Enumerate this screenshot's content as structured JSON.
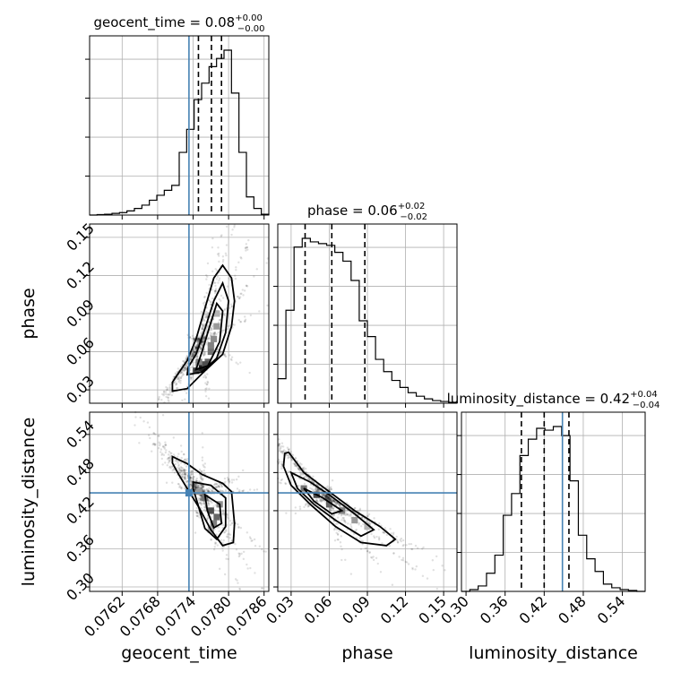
{
  "chart_data": {
    "type": "corner",
    "truth_color": "#4682b4",
    "grid": true,
    "parameters": [
      {
        "name": "geocent_time",
        "axis_label": "geocent_time",
        "range": [
          0.07565,
          0.07868
        ],
        "ticks": [
          0.0762,
          0.0768,
          0.0774,
          0.078,
          0.0786
        ],
        "tick_labels": [
          "0.0762",
          "0.0768",
          "0.0774",
          "0.0780",
          "0.0786"
        ],
        "truth": 0.07733,
        "quantiles": [
          0.07749,
          0.07771,
          0.07788
        ],
        "median": 0.07771,
        "title": {
          "main": "geocent_time = 0.08",
          "sup": "+0.00",
          "sub": "−0.00"
        },
        "histogram": [
          0,
          0.003,
          0.005,
          0.01,
          0.015,
          0.025,
          0.04,
          0.06,
          0.09,
          0.12,
          0.15,
          0.18,
          0.38,
          0.52,
          0.7,
          0.8,
          0.9,
          0.95,
          1.0,
          0.74,
          0.38,
          0.11,
          0.04,
          0.005
        ]
      },
      {
        "name": "phase",
        "axis_label": "phase",
        "range": [
          0.0195,
          0.1605
        ],
        "ticks": [
          0.03,
          0.06,
          0.09,
          0.12,
          0.15
        ],
        "tick_labels": [
          "0.03",
          "0.06",
          "0.09",
          "0.12",
          "0.15"
        ],
        "truth": null,
        "quantiles": [
          0.041,
          0.062,
          0.088
        ],
        "median": 0.062,
        "title": {
          "main": "phase = 0.06",
          "sup": "+0.02",
          "sub": "−0.02"
        },
        "histogram": [
          0.14,
          0.53,
          0.89,
          0.94,
          0.92,
          0.91,
          0.9,
          0.86,
          0.81,
          0.7,
          0.47,
          0.38,
          0.25,
          0.18,
          0.13,
          0.09,
          0.06,
          0.04,
          0.025,
          0.015,
          0.01,
          0.005
        ]
      },
      {
        "name": "luminosity_distance",
        "axis_label": "luminosity_distance",
        "range": [
          0.293,
          0.575
        ],
        "ticks": [
          0.3,
          0.36,
          0.42,
          0.48,
          0.54
        ],
        "tick_labels": [
          "0.30",
          "0.36",
          "0.42",
          "0.48",
          "0.54"
        ],
        "truth": 0.448,
        "quantiles": [
          0.385,
          0.42,
          0.458
        ],
        "median": 0.42,
        "title": {
          "main": "luminosity_distance = 0.42",
          "sup": "+0.04",
          "sub": "−0.04"
        },
        "histogram": [
          0,
          0.01,
          0.03,
          0.1,
          0.2,
          0.42,
          0.54,
          0.75,
          0.84,
          0.9,
          0.89,
          0.91,
          0.86,
          0.61,
          0.31,
          0.18,
          0.11,
          0.04,
          0.02,
          0.01,
          0.005,
          0
        ]
      }
    ],
    "pairs": [
      {
        "x": "geocent_time",
        "y": "phase",
        "contours": [
          [
            [
              0.07705,
              0.029
            ],
            [
              0.0773,
              0.031
            ],
            [
              0.0776,
              0.045
            ],
            [
              0.0779,
              0.058
            ],
            [
              0.07805,
              0.08
            ],
            [
              0.0781,
              0.1
            ],
            [
              0.07805,
              0.118
            ],
            [
              0.0779,
              0.128
            ],
            [
              0.07775,
              0.118
            ],
            [
              0.0776,
              0.094
            ],
            [
              0.07745,
              0.07
            ],
            [
              0.0773,
              0.053
            ],
            [
              0.07715,
              0.043
            ],
            [
              0.07705,
              0.036
            ],
            [
              0.07705,
              0.029
            ]
          ],
          [
            [
              0.0773,
              0.042
            ],
            [
              0.07755,
              0.044
            ],
            [
              0.0778,
              0.055
            ],
            [
              0.07795,
              0.075
            ],
            [
              0.078,
              0.1
            ],
            [
              0.0779,
              0.114
            ],
            [
              0.07775,
              0.1
            ],
            [
              0.0776,
              0.078
            ],
            [
              0.07745,
              0.058
            ],
            [
              0.07732,
              0.048
            ],
            [
              0.0773,
              0.042
            ]
          ],
          [
            [
              0.07745,
              0.046
            ],
            [
              0.07765,
              0.049
            ],
            [
              0.07785,
              0.068
            ],
            [
              0.0779,
              0.092
            ],
            [
              0.0778,
              0.098
            ],
            [
              0.07768,
              0.08
            ],
            [
              0.07755,
              0.06
            ],
            [
              0.07745,
              0.046
            ]
          ]
        ],
        "density_cells": [
          [
            0.07755,
            0.047,
            0.9
          ],
          [
            0.07745,
            0.045,
            0.75
          ],
          [
            0.07765,
            0.052,
            0.6
          ],
          [
            0.0777,
            0.06,
            0.55
          ],
          [
            0.07775,
            0.07,
            0.45
          ],
          [
            0.0778,
            0.08,
            0.4
          ],
          [
            0.0778,
            0.09,
            0.3
          ],
          [
            0.0776,
            0.05,
            0.7
          ],
          [
            0.0775,
            0.052,
            0.5
          ],
          [
            0.0777,
            0.065,
            0.5
          ]
        ]
      },
      {
        "x": "geocent_time",
        "y": "luminosity_distance",
        "contours": [
          [
            [
              0.07705,
              0.505
            ],
            [
              0.0773,
              0.494
            ],
            [
              0.07755,
              0.477
            ],
            [
              0.0779,
              0.463
            ],
            [
              0.07805,
              0.45
            ],
            [
              0.0781,
              0.4
            ],
            [
              0.07808,
              0.37
            ],
            [
              0.0779,
              0.365
            ],
            [
              0.0777,
              0.39
            ],
            [
              0.0775,
              0.425
            ],
            [
              0.0773,
              0.455
            ],
            [
              0.07715,
              0.478
            ],
            [
              0.07705,
              0.495
            ],
            [
              0.07705,
              0.505
            ]
          ],
          [
            [
              0.0774,
              0.465
            ],
            [
              0.0777,
              0.46
            ],
            [
              0.07795,
              0.44
            ],
            [
              0.07795,
              0.395
            ],
            [
              0.0778,
              0.375
            ],
            [
              0.0776,
              0.392
            ],
            [
              0.07748,
              0.43
            ],
            [
              0.0774,
              0.455
            ],
            [
              0.0774,
              0.465
            ]
          ],
          [
            [
              0.0776,
              0.445
            ],
            [
              0.07785,
              0.43
            ],
            [
              0.07788,
              0.4
            ],
            [
              0.07775,
              0.393
            ],
            [
              0.07764,
              0.42
            ],
            [
              0.0776,
              0.445
            ]
          ]
        ],
        "density_cells": [
          [
            0.0777,
            0.42,
            0.7
          ],
          [
            0.0778,
            0.41,
            0.6
          ],
          [
            0.0776,
            0.44,
            0.55
          ],
          [
            0.07775,
            0.4,
            0.5
          ],
          [
            0.0775,
            0.45,
            0.4
          ],
          [
            0.07785,
            0.43,
            0.45
          ],
          [
            0.0777,
            0.39,
            0.35
          ]
        ]
      },
      {
        "x": "phase",
        "y": "luminosity_distance",
        "contours": [
          [
            [
              0.025,
              0.51
            ],
            [
              0.028,
              0.512
            ],
            [
              0.04,
              0.48
            ],
            [
              0.06,
              0.45
            ],
            [
              0.08,
              0.42
            ],
            [
              0.1,
              0.395
            ],
            [
              0.112,
              0.375
            ],
            [
              0.105,
              0.365
            ],
            [
              0.085,
              0.37
            ],
            [
              0.065,
              0.395
            ],
            [
              0.045,
              0.43
            ],
            [
              0.03,
              0.46
            ],
            [
              0.024,
              0.49
            ],
            [
              0.025,
              0.51
            ]
          ],
          [
            [
              0.03,
              0.48
            ],
            [
              0.045,
              0.465
            ],
            [
              0.06,
              0.445
            ],
            [
              0.08,
              0.415
            ],
            [
              0.095,
              0.39
            ],
            [
              0.085,
              0.38
            ],
            [
              0.065,
              0.405
            ],
            [
              0.048,
              0.43
            ],
            [
              0.035,
              0.455
            ],
            [
              0.03,
              0.48
            ]
          ],
          [
            [
              0.04,
              0.455
            ],
            [
              0.055,
              0.44
            ],
            [
              0.07,
              0.42
            ],
            [
              0.062,
              0.415
            ],
            [
              0.048,
              0.435
            ],
            [
              0.04,
              0.455
            ]
          ]
        ],
        "density_cells": [
          [
            0.05,
            0.445,
            0.7
          ],
          [
            0.06,
            0.43,
            0.6
          ],
          [
            0.07,
            0.42,
            0.5
          ],
          [
            0.04,
            0.455,
            0.55
          ],
          [
            0.08,
            0.405,
            0.4
          ],
          [
            0.09,
            0.395,
            0.3
          ]
        ]
      }
    ]
  }
}
